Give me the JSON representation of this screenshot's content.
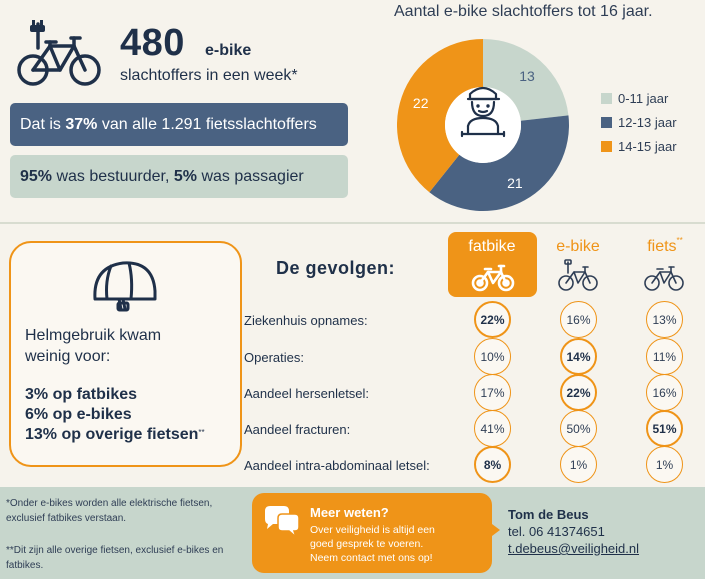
{
  "headline": {
    "number": "480",
    "unit": "e-bike",
    "subtitle": "slachtoffers in een week*"
  },
  "pill1": {
    "prefix": "Dat is ",
    "bold": "37%",
    "suffix": " van alle 1.291 fietsslachtoffers"
  },
  "pill2": {
    "bold1": "95%",
    "text1": " was bestuurder, ",
    "bold2": "5%",
    "text2": " was passagier"
  },
  "chart_data": {
    "type": "pie",
    "title": "Aantal e-bike slachtoffers tot 16 jaar.",
    "categories": [
      "0-11 jaar",
      "12-13 jaar",
      "14-15 jaar"
    ],
    "values": [
      13,
      21,
      22
    ],
    "colors": [
      "#c7d6cc",
      "#4a6282",
      "#ef9418"
    ],
    "donut": true,
    "legend_position": "right"
  },
  "helmet": {
    "intro": [
      "Helmgebruik kwam",
      "weinig voor:"
    ],
    "stats": [
      {
        "bold": "3% op fatbikes",
        "note": ""
      },
      {
        "bold": "6% op e-bikes",
        "note": ""
      },
      {
        "bold": "13% op overige fietsen",
        "note": "**"
      }
    ]
  },
  "gevolgen": {
    "title": "De gevolgen:",
    "columns": [
      {
        "label": "fatbike",
        "note": "",
        "icon": "fatbike-icon"
      },
      {
        "label": "e-bike",
        "note": "",
        "icon": "e-bike-icon"
      },
      {
        "label": "fiets",
        "note": "**",
        "icon": "bike-icon"
      }
    ],
    "rows": [
      {
        "label": "Ziekenhuis opnames:",
        "values": [
          "22%",
          "16%",
          "13%"
        ],
        "highlight": 0
      },
      {
        "label": "Operaties:",
        "values": [
          "10%",
          "14%",
          "11%"
        ],
        "highlight": 1
      },
      {
        "label": "Aandeel hersenletsel:",
        "values": [
          "17%",
          "22%",
          "16%"
        ],
        "highlight": 1
      },
      {
        "label": "Aandeel fracturen:",
        "values": [
          "41%",
          "50%",
          "51%"
        ],
        "highlight": 2
      },
      {
        "label": "Aandeel intra-abdominaal letsel:",
        "values": [
          "8%",
          "1%",
          "1%"
        ],
        "highlight": 0
      }
    ]
  },
  "footnotes": {
    "note1": "*Onder e-bikes worden alle elektrische fietsen, exclusief fatbikes verstaan.",
    "note2": "**Dit zijn alle overige fietsen, exclusief e-bikes en fatbikes."
  },
  "meer": {
    "title": "Meer weten?",
    "lines": [
      "Over veiligheid is altijd een",
      "goed gesprek te voeren.",
      "Neem contact met ons op!"
    ]
  },
  "contact": {
    "name": "Tom de Beus",
    "tel": "tel. 06 41374651",
    "email": "t.debeus@veiligheid.nl"
  },
  "colors": {
    "orange": "#ef9418",
    "navy": "#1f3049",
    "slate": "#4a6282",
    "sage": "#c7d6cc"
  }
}
